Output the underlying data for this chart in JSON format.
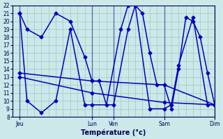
{
  "bg_color": "#cce8e8",
  "grid_color": "#a8cccc",
  "line_color": "#0000bb",
  "axis_color": "#000055",
  "xlabel": "Température (°c)",
  "ylim": [
    8,
    22
  ],
  "yticks": [
    8,
    9,
    10,
    11,
    12,
    13,
    14,
    15,
    16,
    17,
    18,
    19,
    20,
    21,
    22
  ],
  "xlim": [
    0,
    14
  ],
  "day_positions": [
    0.5,
    5.5,
    7.0,
    10.5,
    14.0
  ],
  "day_labels": [
    "Jeu",
    "Lun",
    "Ven",
    "Sam",
    "Dim"
  ],
  "vert_lines": [
    0.5,
    5.5,
    7.0,
    10.5,
    14.0
  ],
  "line1_x": [
    0.5,
    1.0,
    2.0,
    3.0,
    4.0,
    5.0,
    5.5,
    6.0,
    6.5,
    7.5,
    8.0,
    8.5,
    9.0,
    9.5,
    10.0,
    10.5,
    11.0,
    11.5,
    12.0,
    12.5,
    13.0,
    13.5,
    14.0
  ],
  "line1_y": [
    21,
    19,
    18,
    21,
    20,
    15.5,
    12.5,
    12.5,
    9.5,
    19,
    22,
    22,
    21,
    16,
    12,
    12,
    9,
    14,
    20.5,
    20,
    18,
    13.5,
    9.5
  ],
  "line2_x": [
    0.5,
    1.0,
    2.0,
    3.0,
    4.0,
    5.0,
    5.5,
    7.0,
    8.0,
    8.5,
    9.5,
    10.5,
    11.0,
    11.5,
    12.5,
    13.5,
    14.0
  ],
  "line2_y": [
    21,
    10,
    8.5,
    10,
    19,
    9.5,
    9.5,
    9.5,
    19,
    22,
    9,
    9,
    9.5,
    14.5,
    20.5,
    9.5,
    9.5
  ],
  "line3_x": [
    0.5,
    5.5,
    10.5,
    14.0
  ],
  "line3_y": [
    13.5,
    12.5,
    12,
    9.5
  ],
  "line4_x": [
    0.5,
    5.5,
    10.5,
    14.0
  ],
  "line4_y": [
    13.0,
    11.0,
    9.8,
    9.5
  ]
}
